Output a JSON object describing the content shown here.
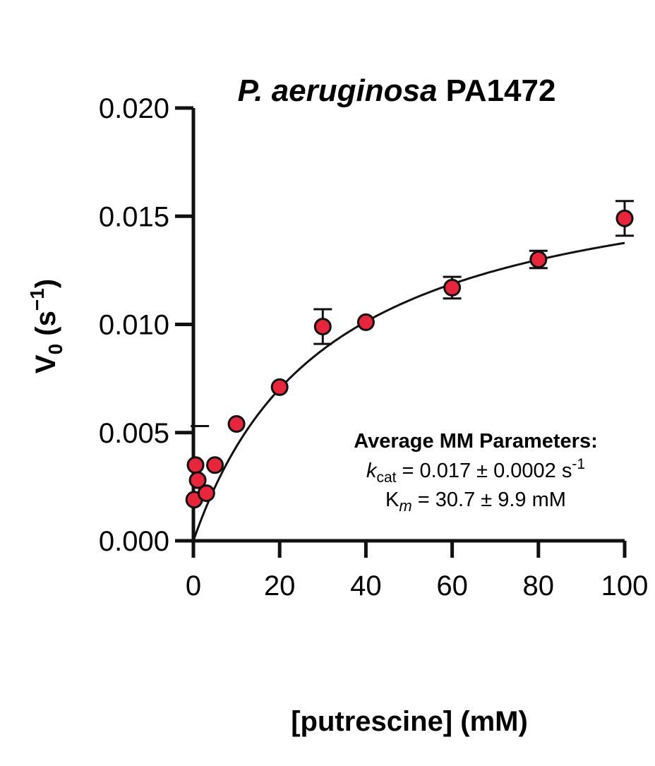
{
  "chart_data": {
    "type": "scatter",
    "title_italic": "P. aeruginosa",
    "title_rest": " PA1472",
    "ylabel_main": "V",
    "ylabel_sub": "0",
    "ylabel_unit_open": " (s",
    "ylabel_unit_sup": "−1",
    "ylabel_unit_close": ")",
    "xlabel": "[putrescine] (mM)",
    "xlim": [
      0,
      100
    ],
    "ylim": [
      0,
      0.02
    ],
    "x_ticks": [
      0,
      20,
      40,
      60,
      80,
      100
    ],
    "x_tick_labels": [
      "0",
      "20",
      "40",
      "60",
      "80",
      "100"
    ],
    "y_ticks": [
      0,
      0.005,
      0.01,
      0.015,
      0.02
    ],
    "y_tick_labels": [
      "0.000",
      "0.005",
      "0.010",
      "0.015",
      "0.020"
    ],
    "grid": false,
    "marker_color": "#e8253a",
    "points": [
      {
        "x": 0.2,
        "y": 0.0019
      },
      {
        "x": 0.5,
        "y": 0.0035
      },
      {
        "x": 1,
        "y": 0.0028
      },
      {
        "x": 3,
        "y": 0.0022
      },
      {
        "x": 5,
        "y": 0.0035
      },
      {
        "x": 10,
        "y": 0.0054
      },
      {
        "x": 20,
        "y": 0.0071
      },
      {
        "x": 30,
        "y": 0.0099,
        "err": 0.0008
      },
      {
        "x": 40,
        "y": 0.0101
      },
      {
        "x": 60,
        "y": 0.0117,
        "err": 0.0005
      },
      {
        "x": 80,
        "y": 0.013,
        "err": 0.0004
      },
      {
        "x": 100,
        "y": 0.0149,
        "err": 0.0008
      }
    ],
    "extra_error_cap": {
      "x": 1.5,
      "y": 0.0053
    },
    "fit": {
      "model": "michaelis-menten",
      "vmax": 0.0181,
      "km": 31.5
    },
    "annotation": {
      "heading": "Average MM Parameters:",
      "kcat_symbol": "k",
      "kcat_sub": "cat",
      "kcat_value": " = 0.017 ± 0.0002 s",
      "kcat_sup": "-1",
      "km_symbol": "K",
      "km_sub": "m",
      "km_value": " = 30.7 ± 9.9 mM"
    }
  }
}
